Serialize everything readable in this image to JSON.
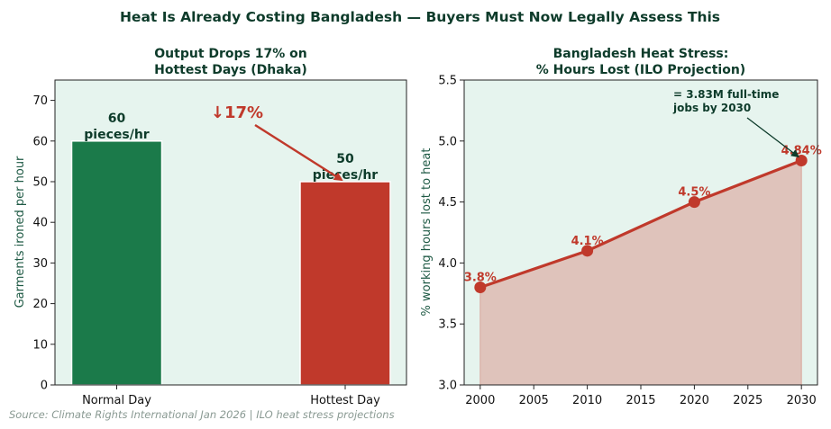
{
  "figure": {
    "suptitle": "Heat Is Already Costing Bangladesh — Buyers Must Now Legally Assess This",
    "source": "Source: Climate Rights International Jan 2026 | ILO heat stress projections",
    "colors": {
      "title": "#0d3b2a",
      "panel_bg": "#e6f4ee",
      "green": "#1b7a4a",
      "red": "#c0392b",
      "fill": "#dfc3bb",
      "source": "#8a9a93"
    }
  },
  "chart_data": [
    {
      "type": "bar",
      "title_lines": [
        "Output Drops 17% on",
        "Hottest Days (Dhaka)"
      ],
      "categories": [
        "Normal Day",
        "Hottest Day"
      ],
      "values": [
        60,
        50
      ],
      "bar_colors": [
        "#1b7a4a",
        "#c0392b"
      ],
      "data_labels": [
        [
          "60",
          "pieces/hr"
        ],
        [
          "50",
          "pieces/hr"
        ]
      ],
      "xlabel": "",
      "ylabel": "Garments ironed per hour",
      "ylim": [
        0,
        75
      ],
      "yticks": [
        0,
        10,
        20,
        30,
        40,
        50,
        60,
        70
      ],
      "grid": false,
      "annotation": {
        "text": "↓17%",
        "arrow_to_category": "Hottest Day",
        "arrow_to_value": 50
      }
    },
    {
      "type": "line",
      "title_lines": [
        "Bangladesh Heat Stress:",
        "% Hours Lost (ILO Projection)"
      ],
      "x": [
        2000,
        2010,
        2020,
        2030
      ],
      "values": [
        3.8,
        4.1,
        4.5,
        4.84
      ],
      "data_labels": [
        "3.8%",
        "4.1%",
        "4.5%",
        "4.84%"
      ],
      "filled_area": true,
      "xlabel": "",
      "ylabel": "% working hours lost to heat",
      "xlim": [
        1998.5,
        2031.5
      ],
      "ylim": [
        3.0,
        5.5
      ],
      "xticks": [
        2000,
        2005,
        2010,
        2015,
        2020,
        2025,
        2030
      ],
      "yticks": [
        "3.0",
        "3.5",
        "4.0",
        "4.5",
        "5.0",
        "5.5"
      ],
      "grid": false,
      "annotation": {
        "lines": [
          "= 3.83M full-time",
          "jobs by 2030"
        ],
        "arrow_to_x": 2030,
        "arrow_to_value": 4.84
      }
    }
  ]
}
